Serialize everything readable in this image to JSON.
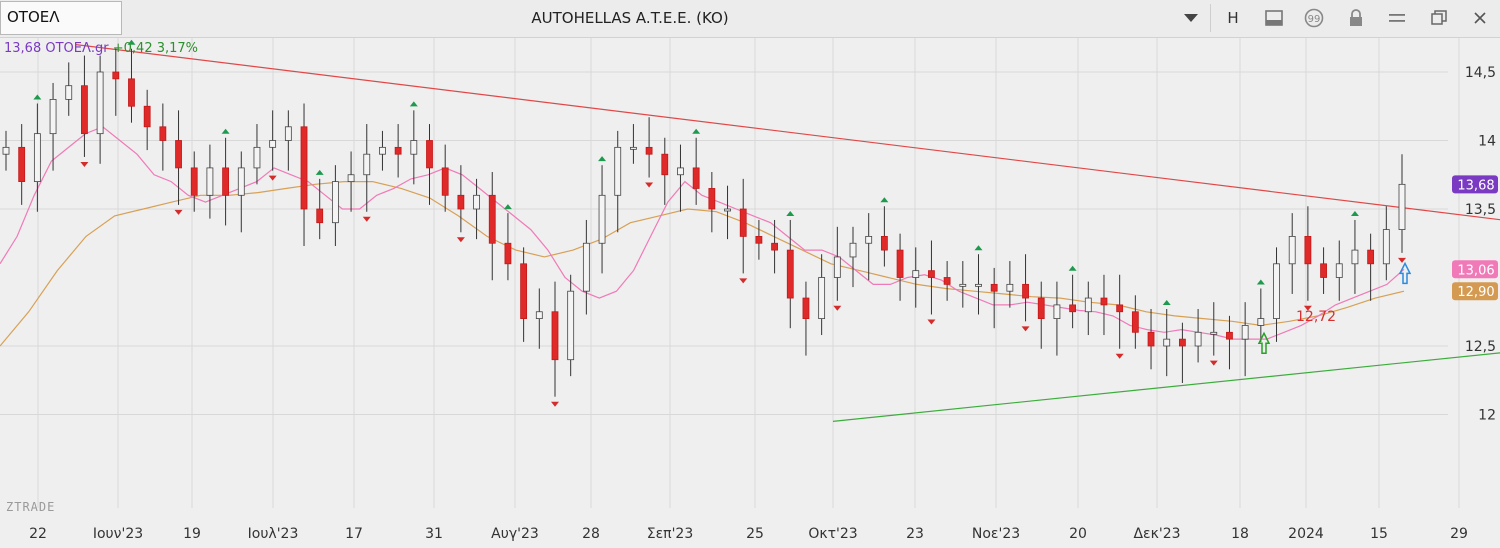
{
  "toolbar": {
    "symbol": "ΟΤΟΕΛ",
    "title": "AUTOHELLAS A.T.E.E. (KO)",
    "h_label": "H",
    "icons": [
      "chevron-down-icon",
      "h-button",
      "panel-icon",
      "comment-icon",
      "lock-icon",
      "menu-icon",
      "restore-icon",
      "close-icon"
    ]
  },
  "quote": {
    "last": "13,68",
    "symbol_label": "ΟΤΟΕΛ.gr",
    "change": "+0,42",
    "change_pct": "3,17%",
    "colors": {
      "last": "#7a3bc2",
      "change": "#2d8f2d"
    }
  },
  "watermark": "ZTRADE",
  "chart_data": {
    "type": "candlestick",
    "y_ticks": [
      "14,5",
      "14",
      "13,5",
      "12,5",
      "12"
    ],
    "y_tick_values": [
      14.5,
      14.0,
      13.5,
      12.5,
      12.0
    ],
    "ylim": [
      11.75,
      14.9
    ],
    "x_labels": [
      "22",
      "Ιουν'23",
      "19",
      "Ιουλ'23",
      "17",
      "31",
      "Αυγ'23",
      "28",
      "Σεπ'23",
      "25",
      "Οκτ'23",
      "23",
      "Νοε'23",
      "20",
      "Δεκ'23",
      "18",
      "2024",
      "15",
      "29"
    ],
    "price_labels": [
      {
        "text": "13,68",
        "value": 13.68,
        "color": "#7a3bc2"
      },
      {
        "text": "13,06",
        "value": 13.06,
        "color": "#f07ab8"
      },
      {
        "text": "12,90",
        "value": 12.9,
        "color": "#d49a52"
      }
    ],
    "annotation": {
      "text": "12,72",
      "value": 12.72
    },
    "series": [
      {
        "name": "Close",
        "values": [
          13.95,
          13.7,
          14.05,
          14.3,
          14.4,
          14.05,
          14.5,
          14.45,
          14.25,
          14.1,
          14.0,
          13.8,
          13.6,
          13.8,
          13.6,
          13.8,
          13.95,
          14.0,
          14.1,
          13.5,
          13.4,
          13.7,
          13.75,
          13.9,
          13.95,
          13.9,
          14.0,
          13.8,
          13.6,
          13.5,
          13.6,
          13.25,
          13.1,
          12.7,
          12.75,
          12.4,
          12.9,
          13.25,
          13.6,
          13.95,
          13.95,
          13.9,
          13.75,
          13.8,
          13.65,
          13.5,
          13.5,
          13.3,
          13.25,
          13.2,
          12.85,
          12.7,
          13.0,
          13.15,
          13.25,
          13.3,
          13.2,
          13.0,
          13.05,
          13.0,
          12.95,
          12.95,
          12.95,
          12.9,
          12.95,
          12.85,
          12.7,
          12.8,
          12.75,
          12.85,
          12.8,
          12.75,
          12.6,
          12.5,
          12.55,
          12.5,
          12.6,
          12.6,
          12.55,
          12.65,
          12.7,
          13.1,
          13.3,
          13.1,
          13.0,
          13.1,
          13.2,
          13.1,
          13.35,
          13.68
        ]
      },
      {
        "name": "MA fast",
        "values": [
          13.1,
          13.3,
          13.6,
          13.85,
          13.95,
          14.05,
          14.1,
          14.0,
          13.9,
          13.75,
          13.7,
          13.6,
          13.55,
          13.6,
          13.65,
          13.7,
          13.8,
          13.75,
          13.7,
          13.6,
          13.5,
          13.5,
          13.6,
          13.65,
          13.72,
          13.75,
          13.8,
          13.75,
          13.65,
          13.55,
          13.45,
          13.35,
          13.2,
          13.0,
          12.9,
          12.85,
          12.9,
          13.05,
          13.3,
          13.55,
          13.7,
          13.6,
          13.55,
          13.5,
          13.45,
          13.4,
          13.3,
          13.2,
          13.2,
          13.15,
          13.05,
          12.95,
          12.95,
          13.0,
          13.02,
          12.98,
          12.9,
          12.85,
          12.8,
          12.8,
          12.82,
          12.8,
          12.78,
          12.76,
          12.75,
          12.72,
          12.65,
          12.62,
          12.6,
          12.62,
          12.6,
          12.58,
          12.55,
          12.55,
          12.55,
          12.6,
          12.65,
          12.72,
          12.8,
          12.85,
          12.9,
          12.95,
          13.06
        ]
      },
      {
        "name": "MA slow",
        "values": [
          12.5,
          12.75,
          13.05,
          13.3,
          13.45,
          13.5,
          13.55,
          13.6,
          13.6,
          13.62,
          13.65,
          13.68,
          13.7,
          13.7,
          13.65,
          13.58,
          13.45,
          13.3,
          13.2,
          13.15,
          13.2,
          13.28,
          13.4,
          13.45,
          13.5,
          13.48,
          13.4,
          13.3,
          13.2,
          13.1,
          13.05,
          13.0,
          12.95,
          12.92,
          12.9,
          12.88,
          12.86,
          12.85,
          12.82,
          12.8,
          12.75,
          12.72,
          12.7,
          12.68,
          12.65,
          12.68,
          12.72,
          12.78,
          12.85,
          12.9
        ]
      }
    ],
    "trendline_up": [
      {
        "x": "Οκτ'23",
        "y": 11.95
      },
      {
        "x": "29",
        "y": 12.45
      }
    ],
    "trendline_down": [
      {
        "x": "22",
        "y": 14.7
      },
      {
        "x": "29",
        "y": 13.4
      }
    ],
    "grid": true
  }
}
